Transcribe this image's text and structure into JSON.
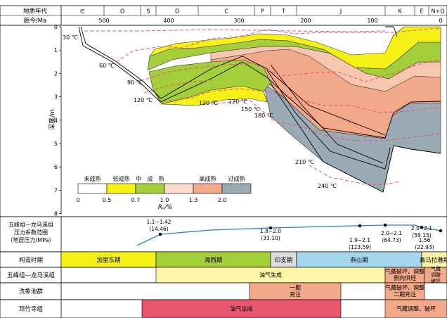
{
  "header": {
    "geo_era_label": "地质年代",
    "age_label": "距今/Ma",
    "periods": [
      "∈",
      "O",
      "S",
      "D",
      "C",
      "P",
      "T",
      "J",
      "K",
      "E",
      "N+Q"
    ],
    "age_ticks": [
      "500",
      "400",
      "300",
      "200",
      "100",
      "0"
    ]
  },
  "burial": {
    "depth_label": "深度/m",
    "depth_ticks": [
      "0",
      "1",
      "2",
      "3",
      "4",
      "5",
      "6",
      "7",
      "8"
    ],
    "isotherms": [
      "30 ℃",
      "60 ℃",
      "90 ℃",
      "120 ℃",
      "120 ℃",
      "120 ℃",
      "150 ℃",
      "180 ℃",
      "210 ℃",
      "240 ℃"
    ]
  },
  "legend": {
    "items": [
      {
        "label": "未成熟",
        "color": "#ffffff"
      },
      {
        "label": "低成熟",
        "color": "#f5f016"
      },
      {
        "label": "中　成　熟",
        "color": "#a5cf3a"
      },
      {
        "label": "",
        "color": "#fadcc8"
      },
      {
        "label": "高成熟",
        "color": "#f2a98a"
      },
      {
        "label": "过成熟",
        "color": "#9aabb6"
      }
    ],
    "values": [
      "0",
      "0.5",
      "0.7",
      "1.0",
      "1.3",
      "2.0"
    ],
    "axis_label": "Rₒ/%"
  },
  "pressure": {
    "label_lines": [
      "五峰组—龙马溪组",
      "压力系数范围",
      "（地层压力/MPa）"
    ],
    "points": [
      {
        "range": "1.1~1.42",
        "value": "(14.46)"
      },
      {
        "range": "1.8~2.0",
        "value": "(33.10)"
      },
      {
        "range": "1.9~2.1",
        "value": "(123.59)"
      },
      {
        "range": "2.0~2.1",
        "value": "(64.73)"
      },
      {
        "range": "2.0~2.1",
        "value": "(59.15)"
      },
      {
        "range": "1.56",
        "value": "(22.93)"
      }
    ]
  },
  "tectonic": {
    "label": "构造时期",
    "phases": [
      {
        "name": "加里东期",
        "color": "#f5f016"
      },
      {
        "name": "海西期",
        "color": "#a5cf3a"
      },
      {
        "name": "印支期",
        "color": "#dcdcdc"
      },
      {
        "name": "燕山期",
        "color": "#a5d7ef"
      },
      {
        "name": "喜马拉雅期",
        "color": "#fff5a8"
      }
    ]
  },
  "rows": [
    {
      "label": "五峰组—龙马溪组",
      "bars": [
        {
          "text": "油气生成",
          "color": "#fff5a8"
        },
        {
          "text": "气藏破坏、调整 侧向供烃",
          "color": "#f2a98a"
        },
        {
          "text": "气藏 调整 破坏",
          "color": "#f2a98a"
        }
      ]
    },
    {
      "label": "洗象池群",
      "bars": [
        {
          "text": "一期 充注",
          "color": "#f2a98a"
        },
        {
          "text": "气藏破坏、调整 二期充注",
          "color": "#f2a98a"
        }
      ]
    },
    {
      "label": "筇竹寺组",
      "bars": [
        {
          "text": "油气生成",
          "color": "#e8566e"
        },
        {
          "text": "气藏调整、破坏",
          "color": "#f2a98a"
        }
      ]
    }
  ]
}
